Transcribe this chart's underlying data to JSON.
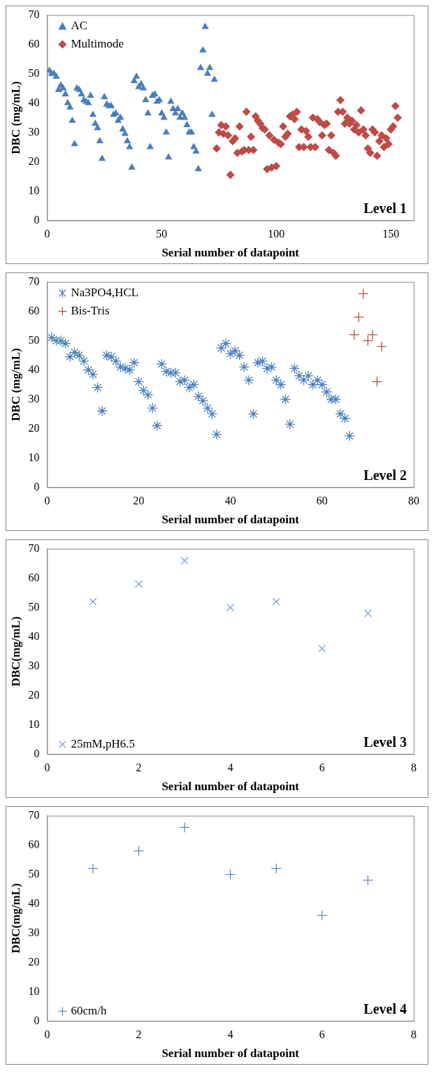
{
  "chart_data": [
    {
      "type": "scatter",
      "xlabel": "Serial number of datapoint",
      "ylabel": "DBC (mg/mL)",
      "xlim": [
        0,
        160
      ],
      "xticks": [
        0,
        50,
        100,
        150
      ],
      "ylim": [
        0,
        70
      ],
      "yticks": [
        0,
        10,
        20,
        30,
        40,
        50,
        60,
        70
      ],
      "grid": false,
      "legend": "top left",
      "annotations": [
        "Level 1"
      ],
      "series": [
        {
          "name": "AC",
          "color": "#4a7ebb",
          "marker": "triangle",
          "x": [
            1,
            2,
            3,
            4,
            5,
            6,
            7,
            8,
            9,
            10,
            11,
            12,
            13,
            14,
            15,
            16,
            17,
            18,
            19,
            20,
            21,
            22,
            23,
            24,
            25,
            26,
            27,
            28,
            29,
            30,
            31,
            32,
            33,
            34,
            35,
            36,
            37,
            38,
            39,
            40,
            41,
            42,
            43,
            44,
            45,
            46,
            47,
            48,
            49,
            50,
            51,
            52,
            53,
            54,
            55,
            56,
            57,
            58,
            59,
            60,
            61,
            62,
            63,
            64,
            65,
            66,
            67,
            68,
            69,
            70,
            71,
            72,
            73
          ],
          "values": [
            51,
            50,
            50,
            49,
            44.5,
            46,
            45,
            43,
            40,
            38.5,
            34,
            26,
            45,
            44.5,
            43,
            41,
            40.5,
            40,
            42.5,
            36,
            33,
            31.5,
            27,
            21,
            42,
            39.5,
            39,
            39,
            36,
            36.5,
            34,
            35,
            31,
            29.5,
            27,
            25,
            18,
            47.5,
            49,
            45.5,
            46.5,
            45,
            41,
            36.5,
            25,
            42.5,
            43,
            40.5,
            41,
            36.5,
            35,
            30,
            21.5,
            40.5,
            38,
            36.5,
            38,
            35,
            36.5,
            35,
            32.5,
            30,
            30,
            25,
            23.5,
            17.5,
            52,
            58,
            66,
            50,
            52,
            36,
            48
          ]
        },
        {
          "name": "Multimode",
          "color": "#be4b48",
          "marker": "diamond",
          "x": [
            74,
            75,
            76,
            77,
            78,
            79,
            80,
            81,
            82,
            83,
            84,
            85,
            86,
            87,
            88,
            89,
            90,
            91,
            92,
            93,
            94,
            95,
            96,
            97,
            98,
            99,
            100,
            101,
            102,
            103,
            104,
            105,
            106,
            107,
            108,
            109,
            110,
            111,
            112,
            113,
            114,
            115,
            116,
            117,
            118,
            119,
            120,
            121,
            122,
            123,
            124,
            125,
            126,
            127,
            128,
            129,
            130,
            131,
            132,
            133,
            134,
            135,
            136,
            137,
            138,
            139,
            140,
            141,
            142,
            143,
            144,
            145,
            146,
            147,
            148,
            149,
            150,
            151,
            152,
            153
          ],
          "values": [
            24.5,
            30,
            32.5,
            29.5,
            32,
            29,
            15.5,
            27,
            28,
            23,
            32,
            23.5,
            24,
            37,
            24,
            28.5,
            24,
            35.5,
            34,
            33,
            31.5,
            31,
            17.5,
            29,
            18,
            27.5,
            18.5,
            26.5,
            26,
            32,
            28.5,
            29.5,
            35.5,
            36,
            34.5,
            37,
            25,
            31,
            25,
            30.5,
            28.5,
            25,
            35,
            25,
            34.5,
            33.5,
            29,
            32.5,
            33,
            24,
            29,
            23,
            22,
            37,
            41,
            37,
            33,
            35,
            33,
            34,
            31,
            32.5,
            30,
            37.5,
            31,
            29,
            24.5,
            23,
            31,
            30,
            22,
            27,
            29,
            25,
            28,
            26,
            31,
            32,
            39,
            35
          ]
        }
      ]
    },
    {
      "type": "scatter",
      "xlabel": "Serial number of datapoint",
      "ylabel": "DBC (mg/mL)",
      "xlim": [
        0,
        80
      ],
      "xticks": [
        0,
        20,
        40,
        60,
        80
      ],
      "ylim": [
        0,
        70
      ],
      "yticks": [
        0,
        10,
        20,
        30,
        40,
        50,
        60,
        70
      ],
      "grid": false,
      "legend": "top left",
      "annotations": [
        "Level 2"
      ],
      "series": [
        {
          "name": "Na3PO4,HCL",
          "color": "#4a7ebb",
          "x": [
            1,
            2,
            3,
            4,
            5,
            6,
            7,
            8,
            9,
            10,
            11,
            12,
            13,
            14,
            15,
            16,
            17,
            18,
            19,
            20,
            21,
            22,
            23,
            24,
            25,
            26,
            27,
            28,
            29,
            30,
            31,
            32,
            33,
            34,
            35,
            36,
            37,
            38,
            39,
            40,
            41,
            42,
            43,
            44,
            45,
            46,
            47,
            48,
            49,
            50,
            51,
            52,
            53,
            54,
            55,
            56,
            57,
            58,
            59,
            60,
            61,
            62,
            63,
            64,
            65,
            66
          ],
          "values": [
            51,
            50,
            50,
            49,
            44.5,
            46,
            45,
            43,
            40,
            38.5,
            34,
            26,
            45,
            44.5,
            43,
            41,
            40.5,
            40,
            42.5,
            36,
            33,
            31.5,
            27,
            21,
            42,
            39.5,
            39,
            39,
            36,
            36.5,
            34,
            35,
            31,
            29.5,
            27,
            25,
            18,
            47.5,
            49,
            45.5,
            46.5,
            45,
            41,
            36.5,
            25,
            42.5,
            43,
            40.5,
            41,
            36.5,
            35,
            30,
            21.5,
            40.5,
            38,
            36.5,
            38,
            35,
            36.5,
            35,
            32.5,
            30,
            30,
            25,
            23.5,
            17.5
          ]
        },
        {
          "name": "Bis-Tris",
          "color": "#be4b48",
          "marker": "cross",
          "x": [
            67,
            68,
            69,
            70,
            71,
            72,
            73
          ],
          "values": [
            52,
            58,
            66,
            50,
            52,
            36,
            48
          ]
        }
      ]
    },
    {
      "type": "scatter",
      "xlabel": "Serial number of datapoint",
      "ylabel": "DBC(mg/mL)",
      "xlim": [
        0,
        8
      ],
      "xticks": [
        0,
        2,
        4,
        6,
        8
      ],
      "ylim": [
        0,
        70
      ],
      "yticks": [
        0,
        10,
        20,
        30,
        40,
        50,
        60,
        70
      ],
      "grid": false,
      "legend": "bottom left",
      "annotations": [
        "Level 3"
      ],
      "series": [
        {
          "name": "25mM,pH6.5",
          "color": "#7ba0d4",
          "marker": "x",
          "x": [
            1,
            2,
            3,
            4,
            5,
            6,
            7
          ],
          "values": [
            52,
            58,
            66,
            50,
            52,
            36,
            48
          ]
        }
      ]
    },
    {
      "type": "scatter",
      "xlabel": "Serial number of datapoint",
      "ylabel": "DBC(mg/mL)",
      "xlim": [
        0,
        8
      ],
      "xticks": [
        0,
        2,
        4,
        6,
        8
      ],
      "ylim": [
        0,
        70
      ],
      "yticks": [
        0,
        10,
        20,
        30,
        40,
        50,
        60,
        70
      ],
      "grid": false,
      "legend": "bottom left",
      "annotations": [
        "Level 4"
      ],
      "series": [
        {
          "name": "60cm/h",
          "color": "#5b8cc9",
          "marker": "cross",
          "x": [
            1,
            2,
            3,
            4,
            5,
            6,
            7
          ],
          "values": [
            52,
            58,
            66,
            50,
            52,
            36,
            48
          ]
        }
      ]
    }
  ]
}
